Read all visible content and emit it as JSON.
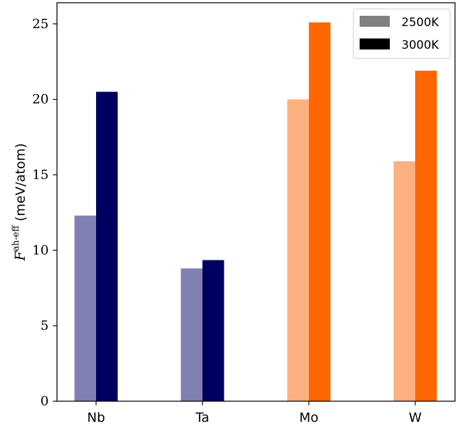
{
  "chart_data": {
    "type": "bar",
    "categories": [
      "Nb",
      "Ta",
      "Mo",
      "W"
    ],
    "series": [
      {
        "name": "2500K",
        "values": [
          12.3,
          8.8,
          20.0,
          15.9
        ]
      },
      {
        "name": "3000K",
        "values": [
          20.5,
          9.35,
          25.1,
          21.9
        ]
      }
    ],
    "bar_colors": {
      "2500K": [
        "#8080b3",
        "#8080b3",
        "#ffb080",
        "#ffb080"
      ],
      "3000K": [
        "#000060",
        "#000060",
        "#ff6600",
        "#ff6600"
      ]
    },
    "legend_colors": {
      "2500K": "#808080",
      "3000K": "#000000"
    },
    "ylim": [
      0,
      26.4
    ],
    "yticks": [
      0,
      5,
      10,
      15,
      20,
      25
    ],
    "ylabel": {
      "symbol": "F",
      "superscript": "ah-eff",
      "units": "(meV/atom)"
    },
    "xlabel": "",
    "title": "",
    "legend_position": "top-right",
    "grid": false
  }
}
